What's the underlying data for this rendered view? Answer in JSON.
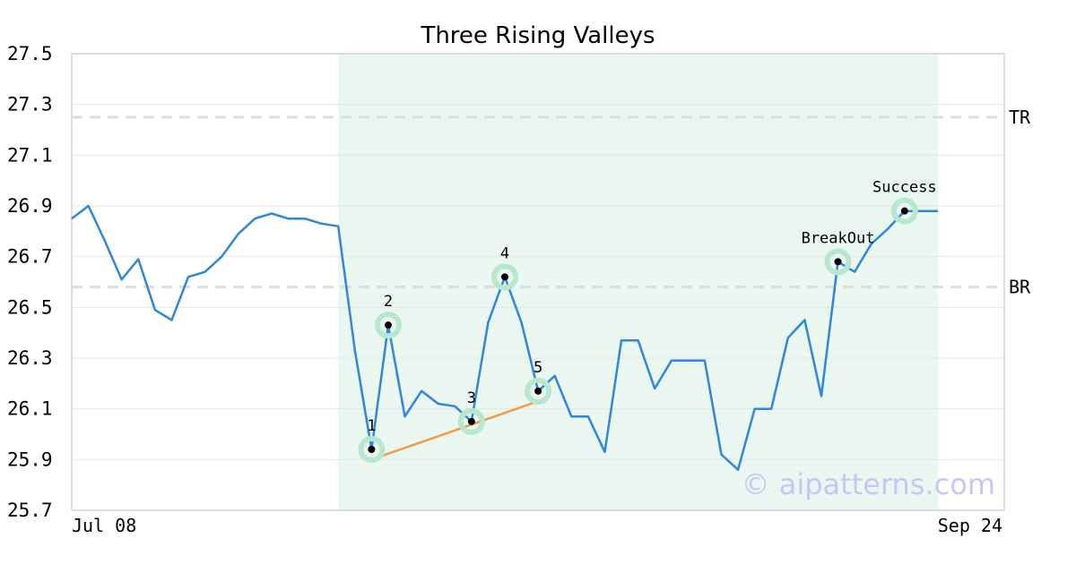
{
  "chart_data": {
    "type": "line",
    "title": "Three Rising Valleys",
    "watermark": "© aipatterns.com",
    "xlabel": "",
    "ylabel": "",
    "x_tick_labels": [
      "Jul 08",
      "Sep 24"
    ],
    "ylim": [
      25.7,
      27.5
    ],
    "yticks": [
      "25.7",
      "25.9",
      "26.1",
      "26.3",
      "26.5",
      "26.7",
      "26.9",
      "27.1",
      "27.3",
      "27.5"
    ],
    "grid": true,
    "colors": {
      "line": "#2e86de",
      "valley_line": "#f39c3d",
      "highlight": "#eaf6f0",
      "marker_halo": "#b8e6cf",
      "reference": "#dddddd"
    },
    "series": [
      {
        "values": [
          26.85,
          26.9,
          26.76,
          26.61,
          26.69,
          26.49,
          26.45,
          26.62,
          26.64,
          26.7,
          26.79,
          26.85,
          26.87,
          26.85,
          26.85,
          26.83,
          26.82,
          26.33,
          25.94,
          26.43,
          26.07,
          26.17,
          26.12,
          26.11,
          26.05,
          26.44,
          26.62,
          26.44,
          26.17,
          26.23,
          26.07,
          26.07,
          25.93,
          26.37,
          26.37,
          26.18,
          26.29,
          26.29,
          26.29,
          25.92,
          25.86,
          26.1,
          26.1,
          26.38,
          26.45,
          26.15,
          26.68,
          26.64,
          26.75,
          26.81,
          26.88,
          26.88,
          26.88
        ]
      }
    ],
    "highlight_range_index": [
      16,
      52
    ],
    "reference_lines": [
      {
        "label": "TR",
        "value": 27.25
      },
      {
        "label": "BR",
        "value": 26.58
      }
    ],
    "valley_trendline": [
      {
        "index": 18,
        "value": 25.9
      },
      {
        "index": 28,
        "value": 26.13
      }
    ],
    "annotations": [
      {
        "label": "1",
        "index": 18,
        "value": 25.94
      },
      {
        "label": "2",
        "index": 19,
        "value": 26.43
      },
      {
        "label": "3",
        "index": 24,
        "value": 26.05
      },
      {
        "label": "4",
        "index": 26,
        "value": 26.62
      },
      {
        "label": "5",
        "index": 28,
        "value": 26.17
      },
      {
        "label": "BreakOut",
        "index": 46,
        "value": 26.68
      },
      {
        "label": "Success",
        "index": 50,
        "value": 26.88
      }
    ]
  }
}
